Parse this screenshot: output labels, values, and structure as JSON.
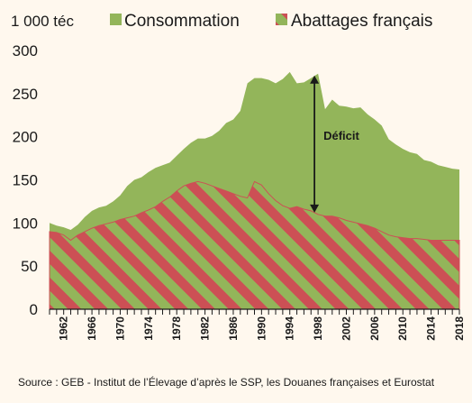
{
  "chart_data": {
    "type": "area",
    "unit_label": "1 000 téc",
    "x": [
      1960,
      1961,
      1962,
      1963,
      1964,
      1965,
      1966,
      1967,
      1968,
      1969,
      1970,
      1971,
      1972,
      1973,
      1974,
      1975,
      1976,
      1977,
      1978,
      1979,
      1980,
      1981,
      1982,
      1983,
      1984,
      1985,
      1986,
      1987,
      1988,
      1989,
      1990,
      1991,
      1992,
      1993,
      1994,
      1995,
      1996,
      1997,
      1998,
      1999,
      2000,
      2001,
      2002,
      2003,
      2004,
      2005,
      2006,
      2007,
      2008,
      2009,
      2010,
      2011,
      2012,
      2013,
      2014,
      2015,
      2016,
      2017,
      2018
    ],
    "xticks": [
      "1962",
      "1966",
      "1970",
      "1974",
      "1978",
      "1982",
      "1986",
      "1990",
      "1994",
      "1998",
      "2002",
      "2006",
      "2010",
      "2014",
      "2018"
    ],
    "ylim": [
      0,
      300
    ],
    "yticks": [
      "0",
      "50",
      "100",
      "150",
      "200",
      "250",
      "300"
    ],
    "series": [
      {
        "name": "Consommation",
        "color": "#93b55a",
        "values": [
          100,
          97,
          95,
          92,
          98,
          107,
          114,
          118,
          120,
          125,
          132,
          143,
          150,
          153,
          159,
          164,
          167,
          170,
          178,
          186,
          193,
          198,
          198,
          201,
          207,
          216,
          220,
          230,
          262,
          268,
          268,
          266,
          262,
          267,
          275,
          262,
          263,
          268,
          273,
          232,
          243,
          236,
          235,
          233,
          234,
          226,
          220,
          213,
          197,
          191,
          186,
          182,
          180,
          173,
          171,
          167,
          165,
          163,
          162
        ],
        "style": "solid"
      },
      {
        "name": "Abattages français",
        "color": "#cc5055",
        "values": [
          90,
          89,
          86,
          80,
          86,
          90,
          94,
          97,
          99,
          101,
          104,
          106,
          108,
          112,
          115,
          119,
          125,
          130,
          137,
          143,
          146,
          148,
          146,
          143,
          140,
          137,
          134,
          131,
          129,
          148,
          144,
          134,
          126,
          120,
          117,
          119,
          116,
          114,
          110,
          108,
          108,
          106,
          103,
          101,
          99,
          97,
          94,
          90,
          86,
          84,
          83,
          82,
          82,
          81,
          80,
          80,
          80,
          80,
          80
        ],
        "style": "hatched"
      }
    ],
    "annotations": [
      {
        "text": "Déficit",
        "type": "double-arrow",
        "x": 1998,
        "y_from": 112,
        "y_to": 271
      }
    ],
    "legend_placement": "top"
  },
  "source": "Source : GEB - Institut de l’Élevage d’après le SSP, les Douanes françaises et Eurostat"
}
